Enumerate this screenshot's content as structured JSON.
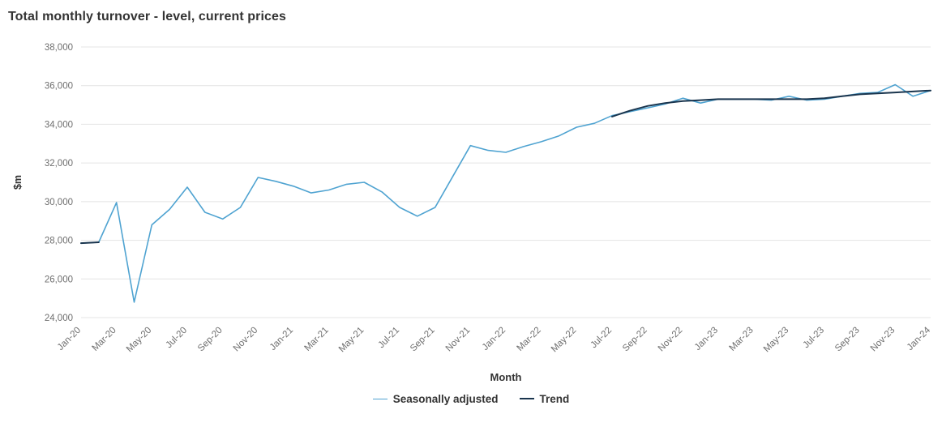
{
  "chart_data": {
    "type": "line",
    "title": "Total monthly turnover - level, current prices",
    "xlabel": "Month",
    "ylabel": "$m",
    "ylim": [
      24000,
      38000
    ],
    "ytick_step": 2000,
    "grid": "horizontal",
    "legend_position": "bottom",
    "x_tick_every": 2,
    "x": [
      "Jan-20",
      "Feb-20",
      "Mar-20",
      "Apr-20",
      "May-20",
      "Jun-20",
      "Jul-20",
      "Aug-20",
      "Sep-20",
      "Oct-20",
      "Nov-20",
      "Dec-20",
      "Jan-21",
      "Feb-21",
      "Mar-21",
      "Apr-21",
      "May-21",
      "Jun-21",
      "Jul-21",
      "Aug-21",
      "Sep-21",
      "Oct-21",
      "Nov-21",
      "Dec-21",
      "Jan-22",
      "Feb-22",
      "Mar-22",
      "Apr-22",
      "May-22",
      "Jun-22",
      "Jul-22",
      "Aug-22",
      "Sep-22",
      "Oct-22",
      "Nov-22",
      "Dec-22",
      "Jan-23",
      "Feb-23",
      "Mar-23",
      "Apr-23",
      "May-23",
      "Jun-23",
      "Jul-23",
      "Aug-23",
      "Sep-23",
      "Oct-23",
      "Nov-23",
      "Dec-23",
      "Jan-24"
    ],
    "series": [
      {
        "name": "Seasonally adjusted",
        "color": "#4FA3D1",
        "width": 1.6,
        "values": [
          27850,
          27900,
          29950,
          24800,
          28800,
          29600,
          30750,
          29450,
          29100,
          29700,
          31250,
          31050,
          30800,
          30450,
          30600,
          30900,
          31000,
          30500,
          29700,
          29250,
          29700,
          31300,
          32900,
          32650,
          32550,
          32850,
          33100,
          33400,
          33850,
          34050,
          34450,
          34650,
          34850,
          35050,
          35350,
          35100,
          35300,
          35300,
          35300,
          35250,
          35450,
          35250,
          35300,
          35450,
          35600,
          35650,
          36050,
          35450,
          35750
        ]
      },
      {
        "name": "Trend",
        "color": "#1A354E",
        "width": 2,
        "values": [
          27850,
          27900,
          null,
          null,
          null,
          null,
          null,
          null,
          null,
          null,
          null,
          null,
          null,
          null,
          null,
          null,
          null,
          null,
          null,
          null,
          null,
          null,
          null,
          null,
          null,
          null,
          null,
          null,
          null,
          null,
          34400,
          34700,
          34950,
          35100,
          35200,
          35250,
          35300,
          35300,
          35300,
          35300,
          35300,
          35300,
          35350,
          35450,
          35550,
          35600,
          35650,
          35700,
          35750
        ]
      }
    ]
  }
}
